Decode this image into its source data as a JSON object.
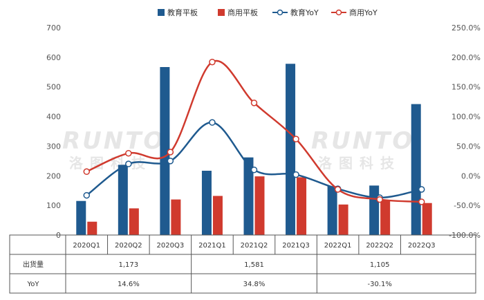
{
  "chart_data": {
    "type": "bar",
    "categories": [
      "2020Q1",
      "2020Q2",
      "2020Q3",
      "2021Q1",
      "2021Q2",
      "2021Q3",
      "2022Q1",
      "2022Q2",
      "2022Q3"
    ],
    "series": [
      {
        "name": "教育平板",
        "kind": "bar",
        "axis": "left",
        "color": "#1f5a8f",
        "values": [
          115,
          237,
          567,
          217,
          262,
          578,
          165,
          167,
          442
        ]
      },
      {
        "name": "商用平板",
        "kind": "bar",
        "axis": "left",
        "color": "#d03a2e",
        "values": [
          45,
          90,
          120,
          132,
          198,
          195,
          103,
          118,
          108
        ]
      },
      {
        "name": "教育YoY",
        "kind": "line",
        "axis": "right",
        "color": "#1f5a8f",
        "values": [
          -33,
          20,
          25,
          90,
          10,
          2,
          -22,
          -37,
          -23
        ]
      },
      {
        "name": "商用YoY",
        "kind": "line",
        "axis": "right",
        "color": "#d03a2e",
        "values": [
          7,
          38,
          40,
          192,
          123,
          62,
          -23,
          -40,
          -44
        ]
      }
    ],
    "left_axis": {
      "min": 0,
      "max": 700,
      "ticks": [
        "0",
        "100",
        "200",
        "300",
        "400",
        "500",
        "600",
        "700"
      ]
    },
    "right_axis": {
      "min": -100,
      "max": 250,
      "ticks": [
        "-100.0%",
        "-50.0%",
        "0.0%",
        "50.0%",
        "100.0%",
        "150.0%",
        "200.0%",
        "250.0%"
      ]
    },
    "legend_position": "top-center",
    "grid": false,
    "table": {
      "rows": [
        {
          "label": "出货量",
          "values": [
            "1,173",
            "1,581",
            "1,105"
          ]
        },
        {
          "label": "YoY",
          "values": [
            "14.6%",
            "34.8%",
            "-30.1%"
          ]
        }
      ]
    }
  },
  "watermark": {
    "text": "RUNTO",
    "sub": "洛图科技"
  }
}
